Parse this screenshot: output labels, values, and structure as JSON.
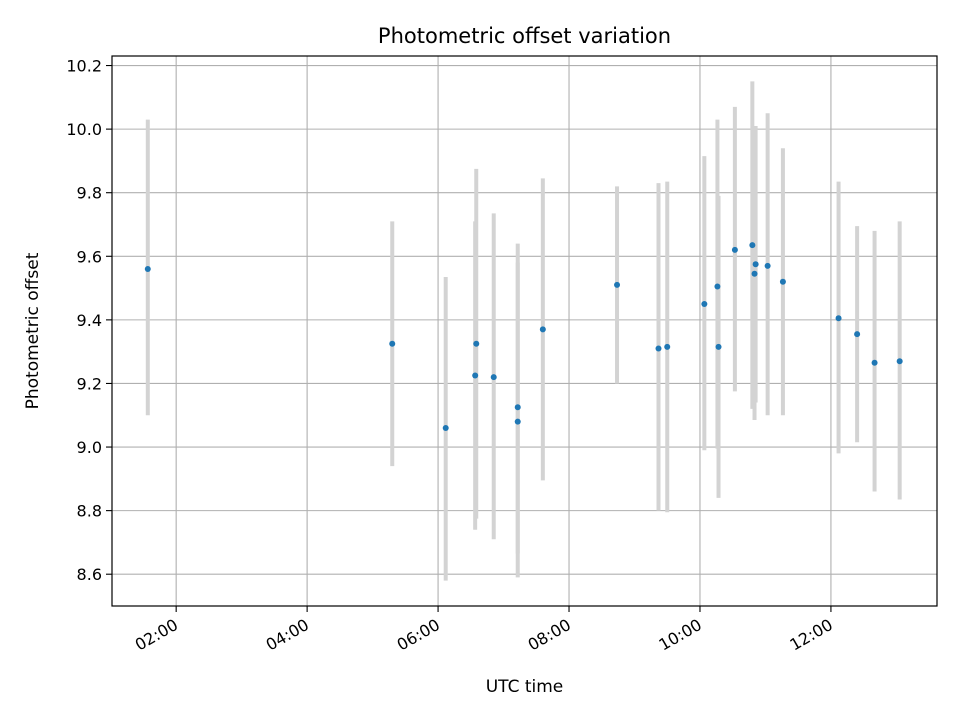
{
  "chart_data": {
    "type": "scatter",
    "title": "Photometric offset variation",
    "xlabel": "UTC time",
    "ylabel": "Photometric offset",
    "xlim_hours": [
      1.02,
      13.62
    ],
    "ylim": [
      8.5,
      10.23
    ],
    "x_ticks": [
      {
        "hour": 2,
        "label": "02:00"
      },
      {
        "hour": 4,
        "label": "04:00"
      },
      {
        "hour": 6,
        "label": "06:00"
      },
      {
        "hour": 8,
        "label": "08:00"
      },
      {
        "hour": 10,
        "label": "10:00"
      },
      {
        "hour": 12,
        "label": "12:00"
      }
    ],
    "y_ticks": [
      {
        "value": 8.6,
        "label": "8.6"
      },
      {
        "value": 8.8,
        "label": "8.8"
      },
      {
        "value": 9.0,
        "label": "9.0"
      },
      {
        "value": 9.2,
        "label": "9.2"
      },
      {
        "value": 9.4,
        "label": "9.4"
      },
      {
        "value": 9.6,
        "label": "9.6"
      },
      {
        "value": 9.8,
        "label": "9.8"
      },
      {
        "value": 10.0,
        "label": "10.0"
      },
      {
        "value": 10.2,
        "label": "10.2"
      }
    ],
    "grid": true,
    "colors": {
      "point": "#1f77b4",
      "errorbar": "#d3d3d3",
      "grid": "#b0b0b0",
      "axes": "#000000"
    },
    "points": [
      {
        "time": "01:34",
        "y": 9.56,
        "ylo": 9.1,
        "yhi": 10.03
      },
      {
        "time": "05:18",
        "y": 9.325,
        "ylo": 8.94,
        "yhi": 9.71
      },
      {
        "time": "06:07",
        "y": 9.06,
        "ylo": 8.58,
        "yhi": 9.535
      },
      {
        "time": "06:34",
        "y": 9.225,
        "ylo": 8.74,
        "yhi": 9.71
      },
      {
        "time": "06:35",
        "y": 9.325,
        "ylo": 8.775,
        "yhi": 9.875
      },
      {
        "time": "06:51",
        "y": 9.22,
        "ylo": 8.71,
        "yhi": 9.735
      },
      {
        "time": "07:13",
        "y": 9.125,
        "ylo": 8.665,
        "yhi": 9.58
      },
      {
        "time": "07:13",
        "y": 9.08,
        "ylo": 8.59,
        "yhi": 9.64
      },
      {
        "time": "07:36",
        "y": 9.37,
        "ylo": 8.895,
        "yhi": 9.845
      },
      {
        "time": "08:44",
        "y": 9.51,
        "ylo": 9.2,
        "yhi": 9.82
      },
      {
        "time": "09:22",
        "y": 9.31,
        "ylo": 8.8,
        "yhi": 9.83
      },
      {
        "time": "09:30",
        "y": 9.315,
        "ylo": 8.795,
        "yhi": 9.835
      },
      {
        "time": "10:04",
        "y": 9.45,
        "ylo": 8.99,
        "yhi": 9.915
      },
      {
        "time": "10:16",
        "y": 9.505,
        "ylo": 8.995,
        "yhi": 10.03
      },
      {
        "time": "10:17",
        "y": 9.315,
        "ylo": 8.84,
        "yhi": 9.79
      },
      {
        "time": "10:32",
        "y": 9.62,
        "ylo": 9.175,
        "yhi": 10.07
      },
      {
        "time": "10:48",
        "y": 9.635,
        "ylo": 9.12,
        "yhi": 10.15
      },
      {
        "time": "10:50",
        "y": 9.545,
        "ylo": 9.085,
        "yhi": 10.01
      },
      {
        "time": "10:51",
        "y": 9.575,
        "ylo": 9.14,
        "yhi": 10.01
      },
      {
        "time": "11:02",
        "y": 9.57,
        "ylo": 9.1,
        "yhi": 10.05
      },
      {
        "time": "11:16",
        "y": 9.52,
        "ylo": 9.1,
        "yhi": 9.94
      },
      {
        "time": "12:07",
        "y": 9.405,
        "ylo": 8.98,
        "yhi": 9.835
      },
      {
        "time": "12:24",
        "y": 9.355,
        "ylo": 9.015,
        "yhi": 9.695
      },
      {
        "time": "12:40",
        "y": 9.265,
        "ylo": 8.86,
        "yhi": 9.68
      },
      {
        "time": "13:03",
        "y": 9.27,
        "ylo": 8.835,
        "yhi": 9.71
      }
    ]
  }
}
